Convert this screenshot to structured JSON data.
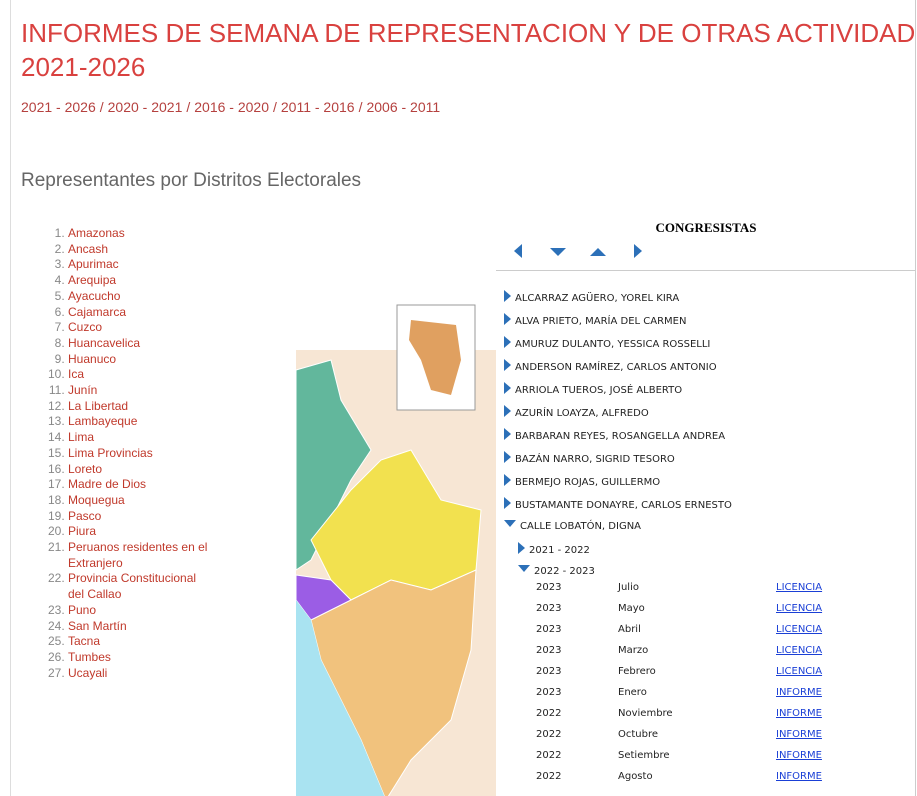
{
  "header": {
    "title": "INFORMES DE SEMANA DE REPRESENTACION Y DE OTRAS ACTIVIDADES",
    "subtitle": "2021-2026"
  },
  "nav": {
    "links": [
      "2021 - 2026",
      "2020 - 2021",
      "2016 - 2020",
      "2011 - 2016",
      "2006 - 2011"
    ]
  },
  "section": {
    "title": "Representantes por Distritos Electorales"
  },
  "districts": [
    "Amazonas",
    "Ancash",
    "Apurimac",
    "Arequipa",
    "Ayacucho",
    "Cajamarca",
    "Cuzco",
    "Huancavelica",
    "Huanuco",
    "Ica",
    "Junín",
    "La Libertad",
    "Lambayeque",
    "Lima",
    "Lima Provincias",
    "Loreto",
    "Madre de Dios",
    "Moquegua",
    "Pasco",
    "Piura",
    "Peruanos residentes en el Extranjero",
    "Provincia Constitucional del Callao",
    "Puno",
    "San Martín",
    "Tacna",
    "Tumbes",
    "Ucayali"
  ],
  "panel": {
    "title": "CONGRESISTAS",
    "members": [
      "ALCARRAZ AGÜERO, YOREL KIRA",
      "ALVA PRIETO, MARÍA DEL CARMEN",
      "AMURUZ DULANTO, YESSICA ROSSELLI",
      "ANDERSON RAMÍREZ, CARLOS ANTONIO",
      "ARRIOLA TUEROS, JOSÉ ALBERTO",
      "AZURÍN LOAYZA, ALFREDO",
      "BARBARAN REYES, ROSANGELLA ANDREA",
      "BAZÁN NARRO, SIGRID TESORO",
      "BERMEJO ROJAS, GUILLERMO",
      "BUSTAMANTE DONAYRE, CARLOS ERNESTO"
    ],
    "expanded": {
      "name": "CALLE LOBATÓN, DIGNA",
      "periods": [
        "2021 - 2022",
        "2022 - 2023"
      ],
      "reports": [
        [
          "2023",
          "Julio",
          "LICENCIA"
        ],
        [
          "2023",
          "Mayo",
          "LICENCIA"
        ],
        [
          "2023",
          "Abril",
          "LICENCIA"
        ],
        [
          "2023",
          "Marzo",
          "LICENCIA"
        ],
        [
          "2023",
          "Febrero",
          "LICENCIA"
        ],
        [
          "2023",
          "Enero",
          "INFORME"
        ],
        [
          "2022",
          "Noviembre",
          "INFORME"
        ],
        [
          "2022",
          "Octubre",
          "INFORME"
        ],
        [
          "2022",
          "Setiembre",
          "INFORME"
        ],
        [
          "2022",
          "Agosto",
          "INFORME"
        ]
      ]
    }
  }
}
